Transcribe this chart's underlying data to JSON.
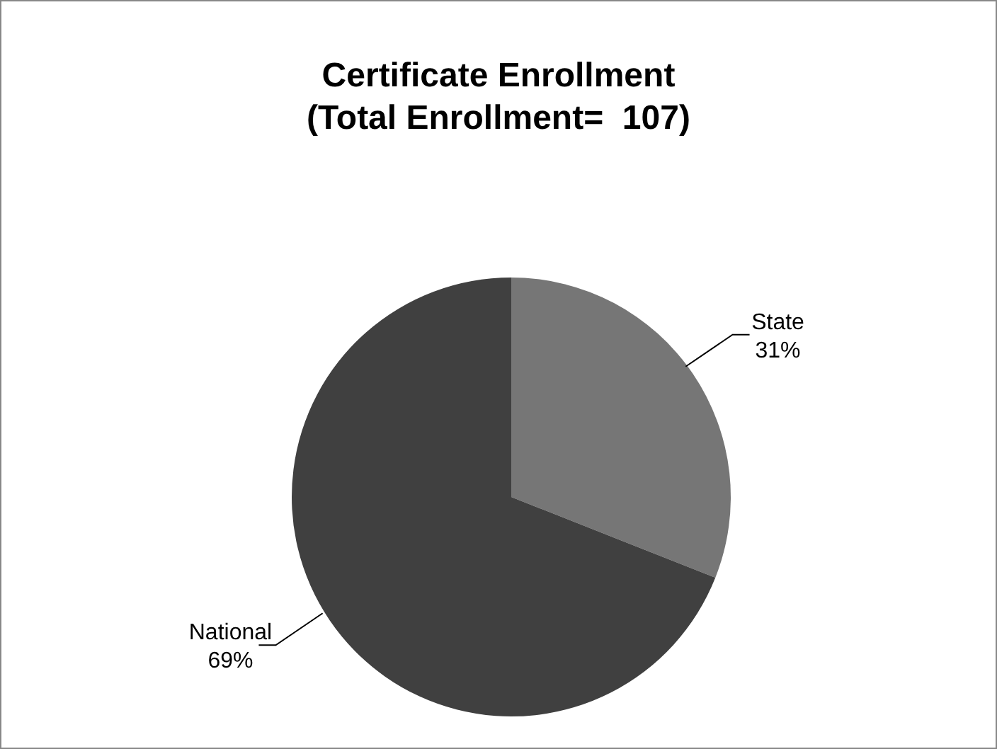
{
  "chart_data": {
    "type": "pie",
    "title": "Certificate Enrollment\n(Total Enrollment=  107)",
    "categories": [
      "State",
      "National"
    ],
    "values": [
      31,
      69
    ],
    "colors": [
      "#767676",
      "#404040"
    ],
    "value_labels": [
      "31%",
      "69%"
    ],
    "legend": false
  }
}
